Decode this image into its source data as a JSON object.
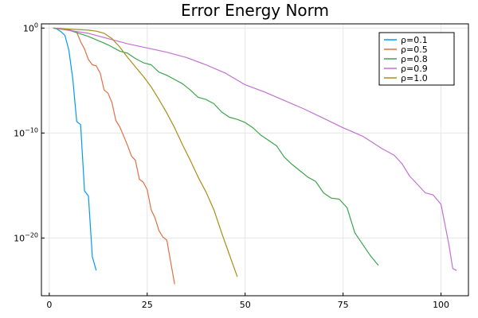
{
  "chart_data": {
    "type": "line",
    "title": "Error Energy Norm",
    "xlabel": "",
    "ylabel": "",
    "xlim": [
      -2,
      107
    ],
    "ylim": [
      -25.5,
      0.4
    ],
    "log_y": true,
    "grid": true,
    "legend_position": "top-right",
    "x_ticks": [
      0,
      25,
      50,
      75,
      100
    ],
    "y_ticks": [
      {
        "exp": 0,
        "base": "10",
        "sup": "0"
      },
      {
        "exp": -10,
        "base": "10",
        "sup": "−10"
      },
      {
        "exp": -20,
        "base": "10",
        "sup": "−20"
      }
    ],
    "series": [
      {
        "name": "ρ=0.1",
        "color": "#009AFA",
        "x": [
          1,
          2,
          3,
          4,
          5,
          6,
          7,
          8,
          9,
          10,
          11,
          12
        ],
        "log10_y": [
          0,
          -0.1,
          -0.35,
          -0.7,
          -2.1,
          -4.8,
          -8.9,
          -9.2,
          -15.5,
          -16,
          -21.8,
          -23.1
        ]
      },
      {
        "name": "ρ=0.5",
        "color": "#E26F46",
        "x": [
          1,
          3,
          5,
          7,
          8,
          9,
          10,
          11,
          12,
          13,
          14,
          15,
          16,
          17,
          18,
          19,
          20,
          21,
          22,
          23,
          24,
          25,
          26,
          27,
          28,
          29,
          30,
          31,
          32
        ],
        "log10_y": [
          0,
          -0.05,
          -0.15,
          -0.4,
          -1.3,
          -2.0,
          -3.0,
          -3.5,
          -3.6,
          -4.3,
          -5.9,
          -6.2,
          -7.1,
          -8.8,
          -9.4,
          -10.3,
          -11.2,
          -12.2,
          -12.6,
          -14.4,
          -14.7,
          -15.4,
          -17.3,
          -18.1,
          -19.3,
          -19.9,
          -20.2,
          -22.3,
          -24.4
        ]
      },
      {
        "name": "ρ=0.8",
        "color": "#3DA44D",
        "x": [
          1,
          5,
          10,
          15,
          18,
          20,
          22,
          24,
          26,
          28,
          30,
          32,
          34,
          36,
          38,
          40,
          42,
          44,
          46,
          48,
          50,
          52,
          54,
          56,
          58,
          60,
          62,
          64,
          66,
          68,
          70,
          72,
          74,
          76,
          78,
          80,
          82,
          84
        ],
        "log10_y": [
          0,
          -0.2,
          -0.8,
          -1.6,
          -2.2,
          -2.4,
          -2.9,
          -3.3,
          -3.5,
          -4.2,
          -4.5,
          -4.9,
          -5.3,
          -5.9,
          -6.6,
          -6.8,
          -7.2,
          -8.0,
          -8.5,
          -8.7,
          -9.0,
          -9.5,
          -10.2,
          -10.7,
          -11.2,
          -12.3,
          -13.0,
          -13.6,
          -14.2,
          -14.6,
          -15.7,
          -16.2,
          -16.3,
          -17.1,
          -19.5,
          -20.6,
          -21.7,
          -22.6
        ]
      },
      {
        "name": "ρ=0.9",
        "color": "#C271D2",
        "x": [
          1,
          10,
          20,
          30,
          35,
          40,
          45,
          50,
          55,
          60,
          65,
          70,
          75,
          80,
          85,
          88,
          90,
          92,
          94,
          96,
          98,
          100,
          102,
          103,
          104
        ],
        "log10_y": [
          0,
          -0.5,
          -1.5,
          -2.3,
          -2.8,
          -3.5,
          -4.3,
          -5.4,
          -6.1,
          -6.9,
          -7.7,
          -8.6,
          -9.5,
          -10.3,
          -11.5,
          -12.1,
          -12.9,
          -14.1,
          -14.9,
          -15.7,
          -15.9,
          -16.8,
          -20.6,
          -22.9,
          -23.1
        ]
      },
      {
        "name": "ρ=1.0",
        "color": "#AC8D18",
        "x": [
          1,
          5,
          10,
          12,
          14,
          16,
          18,
          20,
          22,
          24,
          26,
          28,
          30,
          32,
          34,
          36,
          38,
          40,
          42,
          44,
          46,
          48
        ],
        "log10_y": [
          0,
          -0.1,
          -0.2,
          -0.3,
          -0.5,
          -1.0,
          -1.8,
          -2.8,
          -3.7,
          -4.6,
          -5.6,
          -6.8,
          -8.1,
          -9.5,
          -11.1,
          -12.6,
          -14.2,
          -15.6,
          -17.3,
          -19.5,
          -21.6,
          -23.7
        ]
      }
    ]
  }
}
